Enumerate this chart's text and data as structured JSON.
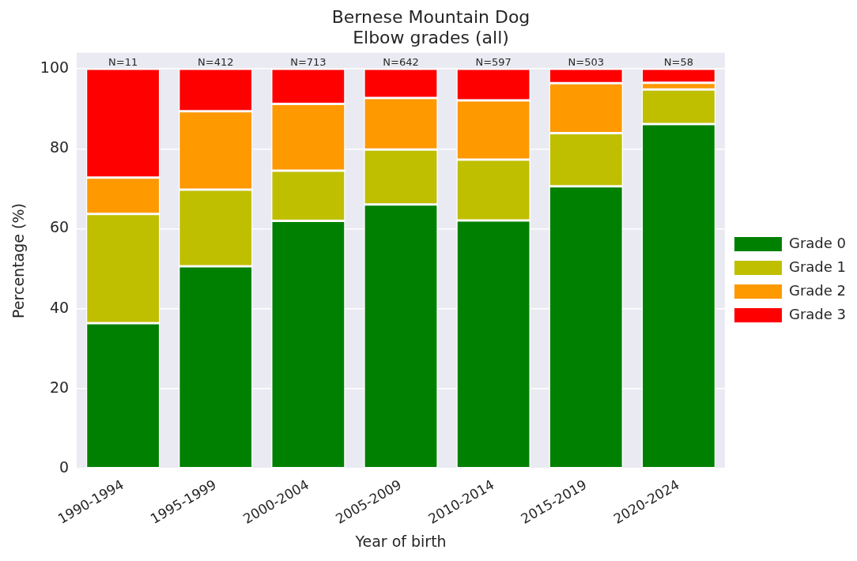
{
  "chart_data": {
    "type": "bar",
    "title": "Bernese Mountain Dog\nElbow grades (all)",
    "xlabel": "Year of birth",
    "ylabel": "Percentage (%)",
    "categories": [
      "1990-1994",
      "1995-1999",
      "2000-2004",
      "2005-2009",
      "2010-2014",
      "2015-2019",
      "2020-2024"
    ],
    "series": [
      {
        "name": "Grade 0",
        "color": "#008000",
        "values": [
          36.4,
          50.6,
          62.0,
          66.1,
          62.1,
          70.6,
          86.2
        ]
      },
      {
        "name": "Grade 1",
        "color": "#bfbf00",
        "values": [
          27.3,
          19.2,
          12.5,
          13.7,
          15.2,
          13.3,
          8.6
        ]
      },
      {
        "name": "Grade 2",
        "color": "#ff9900",
        "values": [
          9.1,
          19.6,
          16.7,
          12.9,
          14.8,
          12.5,
          1.7
        ]
      },
      {
        "name": "Grade 3",
        "color": "#ff0000",
        "values": [
          27.2,
          10.6,
          8.8,
          7.3,
          7.9,
          3.6,
          3.5
        ]
      }
    ],
    "stacked": true,
    "ylim": [
      0,
      104
    ],
    "yticks": [
      0,
      20,
      40,
      60,
      80,
      100
    ],
    "grid": "y",
    "legend": "right",
    "annotations": [
      {
        "text": "N=11",
        "x": "1990-1994",
        "y": 100
      },
      {
        "text": "N=412",
        "x": "1995-1999",
        "y": 100
      },
      {
        "text": "N=713",
        "x": "2000-2004",
        "y": 100
      },
      {
        "text": "N=642",
        "x": "2005-2009",
        "y": 100
      },
      {
        "text": "N=597",
        "x": "2010-2014",
        "y": 100
      },
      {
        "text": "N=503",
        "x": "2015-2019",
        "y": 100
      },
      {
        "text": "N=58",
        "x": "2020-2024",
        "y": 100
      }
    ]
  }
}
